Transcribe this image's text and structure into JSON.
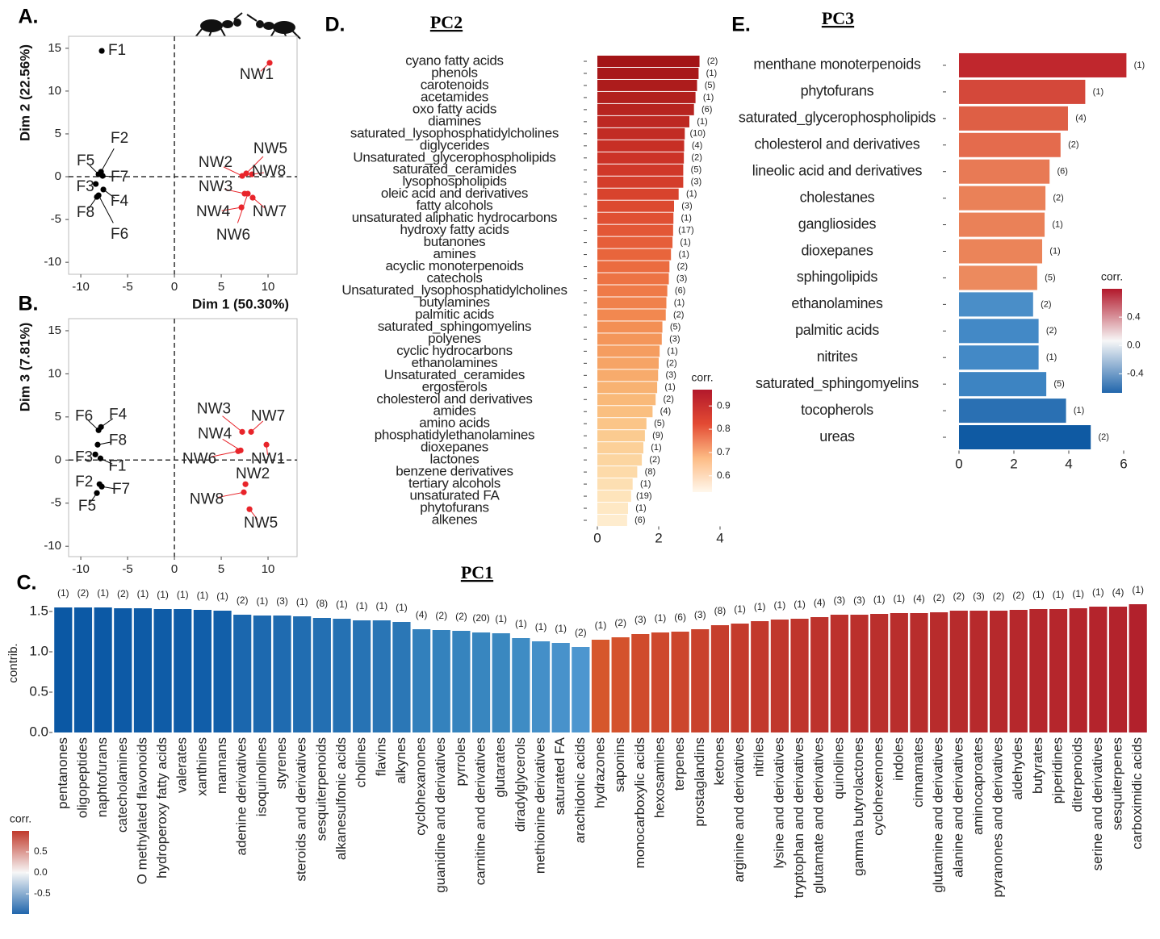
{
  "chart_data": [
    {
      "type": "scatter",
      "label": "A.",
      "xlabel": "Dim 1 (50.30%)",
      "ylabel": "Dim 2 (22.56%)",
      "xlim": [
        -11.3,
        13.1
      ],
      "ylim": [
        -11.4,
        16.4
      ],
      "xticks": [
        -10,
        -5,
        0,
        5,
        10
      ],
      "yticks": [
        -10,
        -5,
        0,
        5,
        10,
        15
      ],
      "series": [
        {
          "color": "#000000",
          "labels": [
            "F1",
            "F2",
            "F5",
            "F7",
            "F3",
            "F4",
            "F8",
            "F6"
          ],
          "x": [
            -7.76,
            -7.84,
            -8.1,
            -7.67,
            -8.4,
            -7.59,
            -8.28,
            -8.1
          ],
          "values": [
            14.7,
            0.57,
            0.28,
            0.1,
            -0.85,
            -1.5,
            -2.36,
            -2.17
          ]
        },
        {
          "color": "#e8242a",
          "labels": [
            "NW1",
            "NW5",
            "NW2",
            "NW8",
            "NW3",
            "NW7",
            "NW4",
            "NW6"
          ],
          "x": [
            10.17,
            7.67,
            7.24,
            8.28,
            7.5,
            8.36,
            7.16,
            7.84
          ],
          "values": [
            13.3,
            0.38,
            0.09,
            0.28,
            -1.98,
            -2.45,
            -3.58,
            -1.98
          ]
        }
      ]
    },
    {
      "type": "scatter",
      "label": "B.",
      "ylabel": "Dim 3 (7.81%)",
      "xlim": [
        -11.3,
        13.1
      ],
      "ylim": [
        -11.2,
        16.4
      ],
      "xticks": [
        -10,
        -5,
        0,
        5,
        10
      ],
      "yticks": [
        -10,
        -5,
        0,
        5,
        10,
        15
      ],
      "series": [
        {
          "color": "#000000",
          "labels": [
            "F6",
            "F4",
            "F8",
            "F3",
            "F1",
            "F2",
            "F7",
            "F5"
          ],
          "x": [
            -8.1,
            -7.84,
            -8.2,
            -8.45,
            -7.9,
            -8.0,
            -7.76,
            -8.28
          ],
          "values": [
            3.46,
            3.83,
            1.78,
            0.65,
            0.19,
            -2.8,
            -3.08,
            -3.83
          ]
        },
        {
          "color": "#e8242a",
          "labels": [
            "NW3",
            "NW7",
            "NW4",
            "NW6",
            "NW1",
            "NW2",
            "NW8",
            "NW5"
          ],
          "x": [
            7.24,
            8.19,
            7.07,
            6.81,
            9.83,
            7.59,
            7.41,
            8.02
          ],
          "values": [
            3.27,
            3.27,
            1.12,
            1.03,
            1.78,
            -2.8,
            -3.74,
            -5.7
          ]
        }
      ]
    },
    {
      "type": "bar",
      "label": "C.",
      "title": "PC1",
      "ylabel": "contrib.",
      "ylim": [
        0,
        1.65
      ],
      "yticks": [
        {
          "value": 0,
          "label": "0.0"
        },
        0.5,
        {
          "value": 1,
          "label": "1.0"
        },
        1.5
      ],
      "categories": [
        "pentanones",
        "oligopeptides",
        "naphtofurans",
        "catecholamines",
        "O methylated flavonoids",
        "hydroperoxy fatty acids",
        "valerates",
        "xanthines",
        "mannans",
        "adenine derivatives",
        "isoquinolines",
        "styrenes",
        "steroids and derivatives",
        "sesquiterpenoids",
        "alkanesulfonic acids",
        "cholines",
        "flavins",
        "alkynes",
        "cyclohexanones",
        "guanidine and derivatives",
        "pyrroles",
        "carnitine and derivatives",
        "glutarates",
        "diradylglycerols",
        "methionine derivatives",
        "saturated FA",
        "arachidonic acids",
        "hydrazones",
        "saponins",
        "monocarboxylic acids",
        "hexosamines",
        "terpenes",
        "prostaglandins",
        "ketones",
        "arginine and derivatives",
        "nitriles",
        "lysine and derivatives",
        "tryptophan and derivatives",
        "glutamate and derivatives",
        "quinolines",
        "gamma butyrolactones",
        "cyclohexenones",
        "indoles",
        "cinnamates",
        "glutamine and derivatives",
        "alanine and derivatives",
        "aminocaproates",
        "pyranones and derivatives",
        "aldehydes",
        "butyrates",
        "piperidines",
        "diterpenoids",
        "serine and derivatives",
        "sesquiterpenes",
        "carboximidic acids"
      ],
      "values": [
        1.55,
        1.55,
        1.55,
        1.54,
        1.54,
        1.53,
        1.53,
        1.52,
        1.51,
        1.46,
        1.45,
        1.45,
        1.44,
        1.42,
        1.41,
        1.39,
        1.39,
        1.37,
        1.28,
        1.27,
        1.26,
        1.24,
        1.23,
        1.17,
        1.13,
        1.11,
        1.06,
        1.15,
        1.18,
        1.22,
        1.24,
        1.25,
        1.28,
        1.33,
        1.35,
        1.38,
        1.4,
        1.41,
        1.43,
        1.46,
        1.46,
        1.47,
        1.48,
        1.48,
        1.49,
        1.51,
        1.51,
        1.51,
        1.52,
        1.53,
        1.53,
        1.54,
        1.56,
        1.56,
        1.59
      ],
      "annotations": [
        "(1)",
        "(2)",
        "(1)",
        "(2)",
        "(1)",
        "(1)",
        "(1)",
        "(1)",
        "(1)",
        "(2)",
        "(1)",
        "(3)",
        "(1)",
        "(8)",
        "(1)",
        "(1)",
        "(1)",
        "(1)",
        "(4)",
        "(2)",
        "(2)",
        "(20)",
        "(1)",
        "(1)",
        "(1)",
        "(1)",
        "(2)",
        "(1)",
        "(2)",
        "(3)",
        "(1)",
        "(6)",
        "(3)",
        "(8)",
        "(1)",
        "(1)",
        "(1)",
        "(1)",
        "(4)",
        "(3)",
        "(3)",
        "(1)",
        "(1)",
        "(4)",
        "(2)",
        "(2)",
        "(3)",
        "(2)",
        "(2)",
        "(1)",
        "(1)",
        "(1)",
        "(1)",
        "(4)",
        "(1)"
      ],
      "colors": [
        "#0b58a4",
        "#0c59a5",
        "#0c59a5",
        "#0d5aa6",
        "#0e5ba6",
        "#0f5ca7",
        "#105da8",
        "#115ea9",
        "#125fa9",
        "#1b67ae",
        "#1d69af",
        "#1f6bb0",
        "#216db1",
        "#236fb2",
        "#2571b3",
        "#2773b4",
        "#2975b5",
        "#2b77b6",
        "#3280bc",
        "#3482bd",
        "#3684be",
        "#3886bf",
        "#3a88c0",
        "#3f8cc4",
        "#448fc8",
        "#4892cb",
        "#4d96cf",
        "#d6572c",
        "#d4522c",
        "#d04b2c",
        "#ce482c",
        "#cc462c",
        "#c9422c",
        "#c63e2c",
        "#c43b2c",
        "#c2392c",
        "#c0372c",
        "#bf352c",
        "#bd332c",
        "#bc312c",
        "#bb302c",
        "#ba2f2c",
        "#b92e2c",
        "#b82d2c",
        "#b82c2c",
        "#b72b2c",
        "#b72a2c",
        "#b6292c",
        "#b6282c",
        "#b5272c",
        "#b5262c",
        "#b4252c",
        "#b4242c",
        "#b3232c",
        "#b2212c"
      ],
      "colorbar": {
        "title": "corr.",
        "lim": [
          -0.98,
          1.0
        ],
        "ticks": [
          0.5,
          {
            "value": 0,
            "label": "0.0"
          },
          -0.5
        ],
        "colors": [
          "#c0392b",
          "#f7f7f7",
          "#2166ac"
        ]
      }
    },
    {
      "type": "barh",
      "label": "D.",
      "title": "PC2",
      "xlim": [
        -0.3,
        4.5
      ],
      "xticks": [
        0,
        2,
        4
      ],
      "categories": [
        "cyano fatty acids",
        "phenols",
        "carotenoids",
        "acetamides",
        "oxo fatty acids",
        "diamines",
        "saturated_lysophosphatidylcholines",
        "diglycerides",
        "Unsaturated_glycerophospholipids",
        "saturated_ceramides",
        "lysophospholipids",
        "oleic acid and derivatives",
        "fatty alcohols",
        "unsaturated aliphatic hydrocarbons",
        "hydroxy fatty acids",
        "butanones",
        "amines",
        "acyclic monoterpenoids",
        "catechols",
        "Unsaturated_lysophosphatidylcholines",
        "butylamines",
        "palmitic acids",
        "saturated_sphingomyelins",
        "polyenes",
        "cyclic hydrocarbons",
        "ethanolamines",
        "Unsaturated_ceramides",
        "ergosterols",
        "cholesterol and derivatives",
        "amides",
        "amino acids",
        "phosphatidylethanolamines",
        "dioxepanes",
        "lactones",
        "benzene derivatives",
        "tertiary alcohols",
        "unsaturated FA",
        "phytofurans",
        "alkenes"
      ],
      "values": [
        3.33,
        3.3,
        3.25,
        3.2,
        3.15,
        3.0,
        2.85,
        2.83,
        2.82,
        2.8,
        2.8,
        2.65,
        2.5,
        2.48,
        2.47,
        2.45,
        2.4,
        2.35,
        2.33,
        2.28,
        2.25,
        2.23,
        2.12,
        2.1,
        2.03,
        2.0,
        1.98,
        1.95,
        1.9,
        1.8,
        1.6,
        1.55,
        1.5,
        1.45,
        1.3,
        1.15,
        1.1,
        1.0,
        0.97
      ],
      "annotations": [
        "(2)",
        "(1)",
        "(5)",
        "(1)",
        "(6)",
        "(1)",
        "(10)",
        "(4)",
        "(2)",
        "(5)",
        "(3)",
        "(1)",
        "(3)",
        "(1)",
        "(17)",
        "(1)",
        "(1)",
        "(2)",
        "(3)",
        "(6)",
        "(1)",
        "(2)",
        "(5)",
        "(3)",
        "(1)",
        "(2)",
        "(3)",
        "(1)",
        "(2)",
        "(4)",
        "(5)",
        "(9)",
        "(1)",
        "(2)",
        "(8)",
        "(1)",
        "(19)",
        "(1)",
        "(6)"
      ],
      "colors": [
        "#a31417",
        "#a8181a",
        "#ad1c1c",
        "#b2201e",
        "#b72420",
        "#bd2822",
        "#c22c24",
        "#c72f25",
        "#cc3327",
        "#d03829",
        "#d43d2b",
        "#d8432d",
        "#dc4a30",
        "#e05033",
        "#e35736",
        "#e65e39",
        "#e8653c",
        "#eb6c40",
        "#ed7344",
        "#ef7a48",
        "#f0814c",
        "#f28850",
        "#f38f55",
        "#f4965a",
        "#f59d60",
        "#f6a466",
        "#f7ab6c",
        "#f8b272",
        "#f9b979",
        "#fabf80",
        "#fbc588",
        "#fbcb90",
        "#fcd098",
        "#fcd5a0",
        "#fddaa9",
        "#fddfb2",
        "#fee4bb",
        "#fee8c4",
        "#feecce"
      ],
      "colorbar": {
        "title": "corr.",
        "lim": [
          0.53,
          0.97
        ],
        "ticks": [
          0.9,
          0.8,
          0.7,
          0.6
        ],
        "colors": [
          "#b2182b",
          "#e34a33",
          "#fdbb84",
          "#fff7ec"
        ]
      }
    },
    {
      "type": "barh",
      "label": "E.",
      "title": "PC3",
      "xlim": [
        -0.3,
        6.7
      ],
      "xticks": [
        0,
        2,
        4,
        6
      ],
      "categories": [
        "menthane monoterpenoids",
        "phytofurans",
        "saturated_glycerophospholipids",
        "cholesterol and derivatives",
        "lineolic acid and derivatives",
        "cholestanes",
        "gangliosides",
        "dioxepanes",
        "sphingolipids",
        "ethanolamines",
        "palmitic acids",
        "nitrites",
        "saturated_sphingomyelins",
        "tocopherols",
        "ureas"
      ],
      "values": [
        6.1,
        4.6,
        3.97,
        3.7,
        3.3,
        3.15,
        3.12,
        3.03,
        2.85,
        2.7,
        2.9,
        2.9,
        3.18,
        3.9,
        4.8
      ],
      "annotations": [
        "(1)",
        "(1)",
        "(4)",
        "(2)",
        "(6)",
        "(2)",
        "(1)",
        "(1)",
        "(5)",
        "(2)",
        "(2)",
        "(1)",
        "(5)",
        "(1)",
        "(2)"
      ],
      "colors": [
        "#c0272d",
        "#d4483a",
        "#de5f45",
        "#e46b4d",
        "#e87a55",
        "#ea8158",
        "#ea8158",
        "#eb8459",
        "#ec8a5e",
        "#4a8ec8",
        "#4389c6",
        "#4389c6",
        "#3d84c2",
        "#2a70b3",
        "#0f5aa3"
      ],
      "colorbar": {
        "title": "corr.",
        "lim": [
          -0.67,
          0.8
        ],
        "ticks": [
          0.4,
          {
            "value": 0,
            "label": "0.0"
          },
          -0.4
        ],
        "colors": [
          "#b2182b",
          "#f7f7f7",
          "#2166ac"
        ]
      }
    }
  ]
}
